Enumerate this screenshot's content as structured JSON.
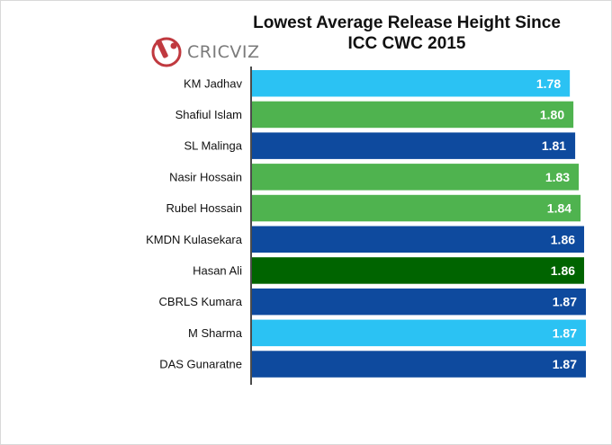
{
  "chart_data": {
    "type": "bar",
    "orientation": "horizontal",
    "title": "Lowest Average Release Height Since ICC CWC 2015",
    "title_lines": [
      "Lowest Average Release Height Since",
      "ICC CWC 2015"
    ],
    "categories": [
      "KM Jadhav",
      "Shafiul Islam",
      "SL Malinga",
      "Nasir Hossain",
      "Rubel Hossain",
      "KMDN Kulasekara",
      "Hasan Ali",
      "CBRLS Kumara",
      "M Sharma",
      "DAS Gunaratne"
    ],
    "values": [
      1.78,
      1.8,
      1.81,
      1.83,
      1.84,
      1.86,
      1.86,
      1.87,
      1.87,
      1.87
    ],
    "value_labels": [
      "1.78",
      "1.80",
      "1.81",
      "1.83",
      "1.84",
      "1.86",
      "1.86",
      "1.87",
      "1.87",
      "1.87"
    ],
    "bar_colors": [
      "#2bc2f3",
      "#4fb34f",
      "#0e4a9e",
      "#4fb34f",
      "#4fb34f",
      "#0e4a9e",
      "#006400",
      "#0e4a9e",
      "#2bc2f3",
      "#0e4a9e"
    ],
    "xlim": [
      0,
      1.87
    ],
    "xlabel": "",
    "ylabel": "",
    "grid": false,
    "legend": "none"
  },
  "branding": {
    "logo_text": "CRICVIZ",
    "logo_icon": "cricket-bat-ball-icon",
    "logo_color": "#c0393f"
  }
}
